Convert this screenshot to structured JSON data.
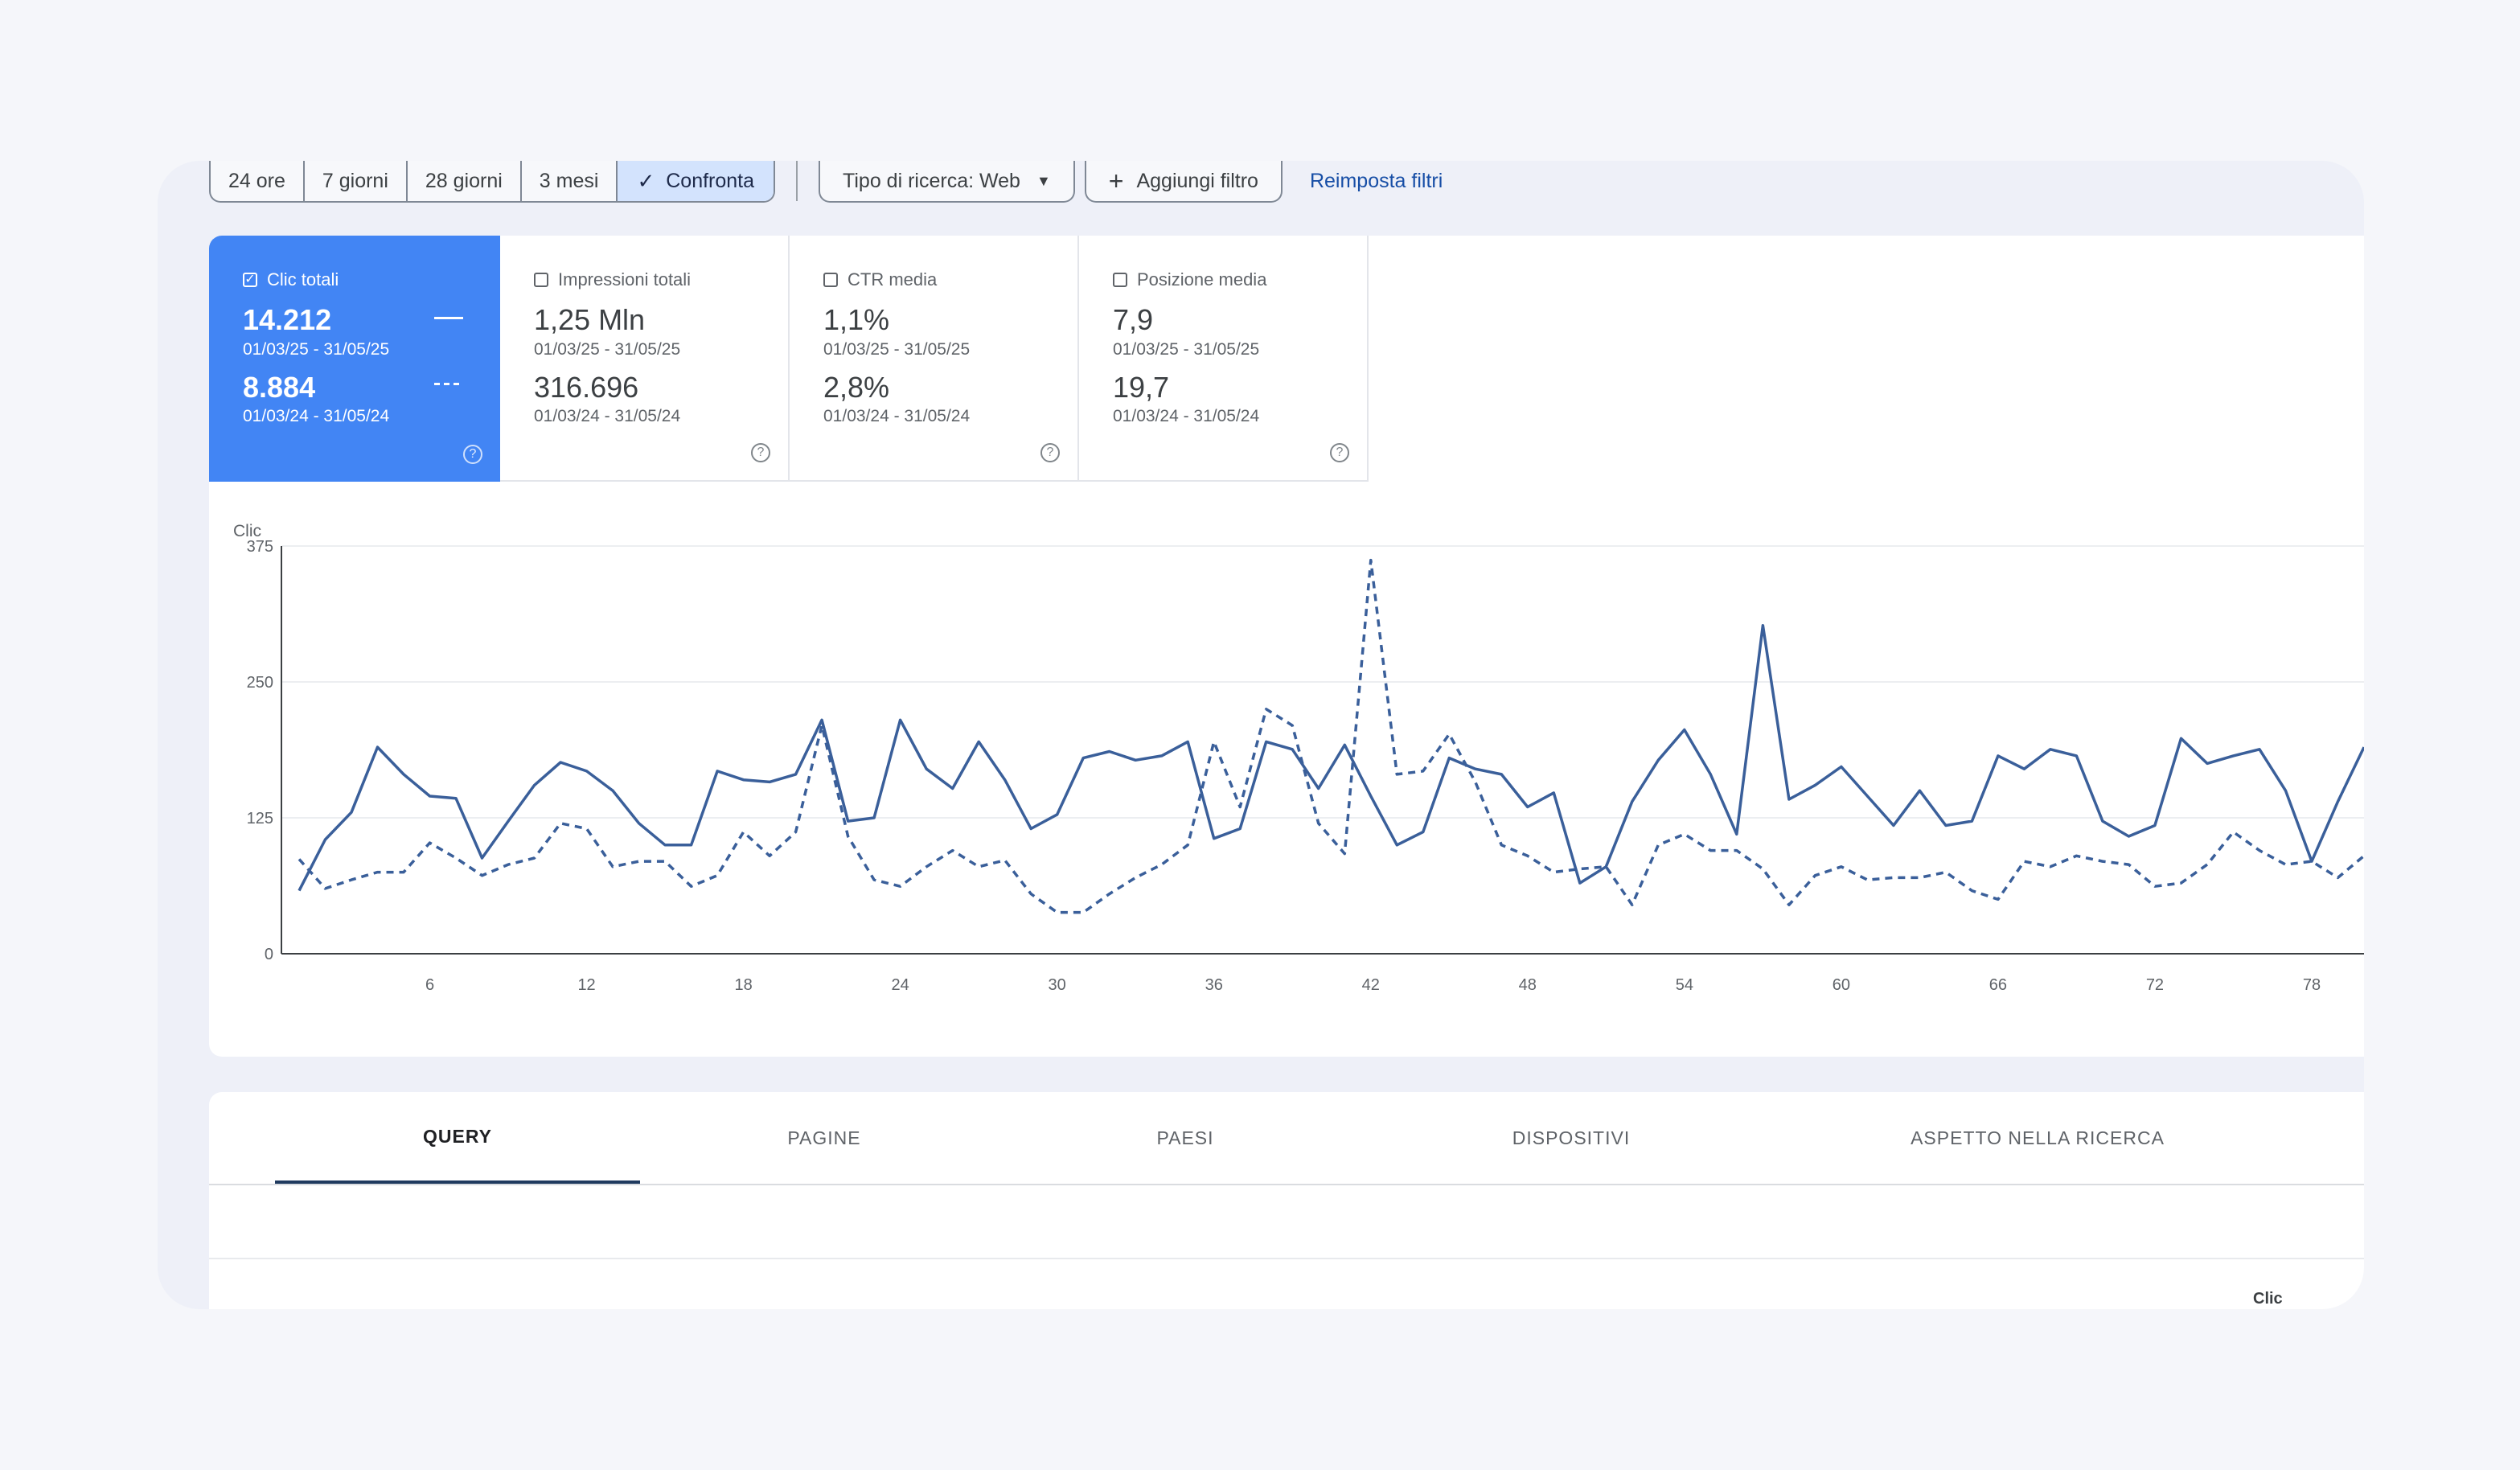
{
  "toolbar": {
    "ranges": [
      "24 ore",
      "7 giorni",
      "28 giorni",
      "3 mesi"
    ],
    "compare_label": "Confronta",
    "search_type_label": "Tipo di ricerca: Web",
    "add_filter_label": "Aggiungi filtro",
    "reset_label": "Reimposta filtri"
  },
  "metrics": [
    {
      "label": "Clic totali",
      "checked": true,
      "value_current": "14.212",
      "range_current": "01/03/25 - 31/05/25",
      "value_previous": "8.884",
      "range_previous": "01/03/24 - 31/05/24"
    },
    {
      "label": "Impressioni totali",
      "checked": false,
      "value_current": "1,25 Mln",
      "range_current": "01/03/25 - 31/05/25",
      "value_previous": "316.696",
      "range_previous": "01/03/24 - 31/05/24"
    },
    {
      "label": "CTR media",
      "checked": false,
      "value_current": "1,1%",
      "range_current": "01/03/25 - 31/05/25",
      "value_previous": "2,8%",
      "range_previous": "01/03/24 - 31/05/24"
    },
    {
      "label": "Posizione media",
      "checked": false,
      "value_current": "7,9",
      "range_current": "01/03/25 - 31/05/25",
      "value_previous": "19,7",
      "range_previous": "01/03/24 - 31/05/24"
    }
  ],
  "colors": {
    "accent": "#4285f4",
    "line_current": "#3a5f9a",
    "line_previous": "#3a5f9a",
    "active_segment": "#d3e3fd"
  },
  "chart_data": {
    "type": "line",
    "ylabel": "Clic",
    "ylim": [
      0,
      375
    ],
    "yticks": [
      0,
      125,
      250,
      375
    ],
    "xticks": [
      6,
      12,
      18,
      24,
      30,
      36,
      42,
      48,
      54,
      60,
      66,
      72,
      78
    ],
    "x_start": 1,
    "grid": true,
    "series": [
      {
        "style": "solid",
        "values": [
          58,
          105,
          130,
          190,
          165,
          145,
          143,
          88,
          122,
          155,
          176,
          168,
          150,
          120,
          100,
          100,
          168,
          160,
          158,
          165,
          215,
          122,
          125,
          215,
          170,
          152,
          195,
          160,
          115,
          128,
          180,
          186,
          178,
          182,
          195,
          106,
          115,
          195,
          188,
          152,
          192,
          145,
          100,
          112,
          180,
          170,
          165,
          135,
          148,
          65,
          80,
          140,
          178,
          206,
          165,
          110,
          302,
          142,
          155,
          172,
          145,
          118,
          150,
          118,
          122,
          182,
          170,
          188,
          182,
          122,
          108,
          118,
          198,
          175,
          182,
          188,
          150,
          85,
          140,
          190
        ]
      },
      {
        "style": "dashed",
        "values": [
          87,
          60,
          68,
          75,
          75,
          102,
          88,
          72,
          82,
          88,
          120,
          115,
          80,
          85,
          85,
          62,
          72,
          112,
          90,
          112,
          210,
          108,
          68,
          62,
          80,
          95,
          80,
          86,
          55,
          38,
          38,
          55,
          70,
          82,
          100,
          195,
          135,
          225,
          210,
          120,
          92,
          362,
          165,
          168,
          202,
          158,
          100,
          90,
          75,
          78,
          80,
          45,
          100,
          110,
          95,
          95,
          78,
          45,
          72,
          80,
          68,
          70,
          70,
          75,
          58,
          50,
          85,
          80,
          90,
          85,
          82,
          62,
          65,
          82,
          112,
          95,
          82,
          85,
          70,
          90
        ]
      }
    ]
  },
  "tabs": [
    "QUERY",
    "PAGINE",
    "PAESI",
    "DISPOSITIVI",
    "ASPETTO NELLA RICERCA"
  ],
  "table": {
    "column_clicks": "Clic"
  }
}
